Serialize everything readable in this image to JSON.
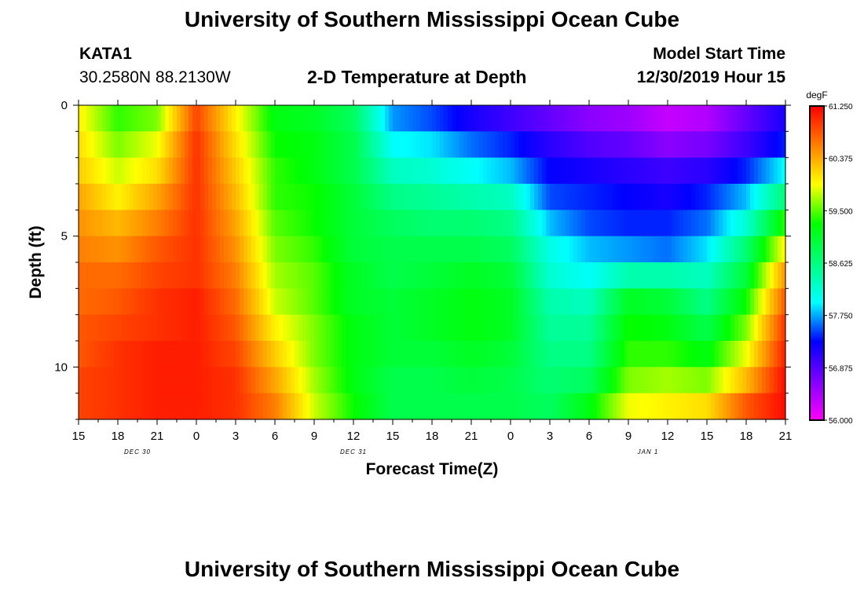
{
  "header": {
    "title_top": "University of Southern Mississippi Ocean Cube",
    "title_bottom": "University of Southern Mississippi Ocean Cube",
    "station_id": "KATA1",
    "station_coords": "30.2580N 88.2130W",
    "model_start_label": "Model Start Time",
    "model_start_value": "12/30/2019 Hour 15"
  },
  "colors": {
    "scale": [
      "#ff00ff",
      "#8000ff",
      "#0000ff",
      "#00ffff",
      "#00ff80",
      "#00ff00",
      "#ffff00",
      "#ff8000",
      "#ff0000"
    ]
  },
  "chart_data": {
    "type": "heatmap",
    "title": "2-D Temperature at Depth",
    "xlabel": "Forecast Time(Z)",
    "ylabel": "Depth (ft)",
    "x_ticks": [
      "15",
      "18",
      "21",
      "0",
      "3",
      "6",
      "9",
      "12",
      "15",
      "18",
      "21",
      "0",
      "3",
      "6",
      "9",
      "12",
      "15",
      "18",
      "21"
    ],
    "date_labels": [
      {
        "label": "DEC 30",
        "hour_offset": 4.5
      },
      {
        "label": "DEC 31",
        "hour_offset": 21
      },
      {
        "label": "JAN 1",
        "hour_offset": 43.5
      }
    ],
    "x_range_hours": [
      0,
      54
    ],
    "y_ticks": [
      "0",
      "5",
      "10"
    ],
    "y_range_ft": [
      0,
      12
    ],
    "colorbar": {
      "unit": "degF",
      "min": 56.0,
      "max": 61.25,
      "labels": [
        "61.250",
        "60.375",
        "59.500",
        "58.625",
        "57.750",
        "56.875",
        "56.000"
      ]
    },
    "depth_bands_ft": [
      0,
      1,
      2,
      3,
      4,
      5,
      6,
      7,
      8,
      9,
      10,
      11,
      12
    ],
    "time_columns_hours": [
      0,
      3,
      6,
      9,
      12,
      15,
      18,
      21,
      24,
      27,
      30,
      33,
      36,
      39,
      42,
      45,
      48,
      51,
      54
    ],
    "values_degF": [
      [
        60.0,
        59.4,
        59.6,
        60.9,
        60.0,
        59.2,
        59.1,
        58.8,
        57.7,
        57.5,
        57.2,
        57.0,
        56.8,
        56.6,
        56.5,
        56.3,
        56.4,
        56.8,
        57.2
      ],
      [
        60.1,
        59.6,
        59.9,
        61.0,
        60.1,
        59.3,
        59.2,
        58.9,
        58.0,
        57.9,
        57.6,
        57.4,
        57.1,
        56.9,
        56.8,
        56.6,
        56.7,
        57.0,
        57.4
      ],
      [
        60.2,
        59.8,
        60.1,
        61.0,
        60.2,
        59.4,
        59.2,
        58.9,
        58.3,
        58.2,
        58.0,
        57.8,
        57.3,
        57.2,
        57.1,
        57.0,
        57.1,
        57.4,
        58.0
      ],
      [
        60.4,
        60.0,
        60.4,
        61.0,
        60.3,
        59.4,
        59.3,
        59.0,
        58.6,
        58.5,
        58.4,
        58.3,
        57.5,
        57.4,
        57.3,
        57.2,
        57.4,
        57.8,
        58.7
      ],
      [
        60.5,
        60.3,
        60.6,
        61.0,
        60.4,
        59.5,
        59.3,
        59.0,
        58.8,
        58.7,
        58.7,
        58.6,
        57.8,
        57.5,
        57.4,
        57.4,
        57.6,
        58.2,
        59.4
      ],
      [
        60.6,
        60.5,
        60.8,
        61.0,
        60.5,
        59.6,
        59.4,
        59.0,
        58.9,
        58.9,
        58.9,
        58.8,
        58.1,
        57.8,
        57.7,
        57.6,
        57.9,
        58.7,
        60.0
      ],
      [
        60.7,
        60.7,
        60.9,
        61.0,
        60.6,
        59.7,
        59.5,
        59.1,
        58.9,
        59.0,
        59.1,
        59.0,
        58.2,
        58.0,
        58.4,
        58.4,
        58.3,
        59.0,
        60.5
      ],
      [
        60.7,
        60.8,
        61.0,
        61.1,
        60.7,
        59.8,
        59.5,
        59.1,
        59.0,
        59.1,
        59.2,
        59.1,
        58.4,
        58.3,
        59.1,
        59.0,
        58.6,
        59.3,
        60.8
      ],
      [
        60.8,
        60.9,
        61.0,
        61.1,
        60.8,
        60.0,
        59.6,
        59.2,
        59.0,
        59.1,
        59.2,
        59.1,
        58.5,
        58.5,
        59.3,
        59.2,
        58.9,
        59.6,
        61.0
      ],
      [
        60.8,
        61.0,
        61.1,
        61.1,
        60.9,
        60.2,
        59.6,
        59.2,
        59.0,
        59.0,
        59.1,
        59.0,
        58.6,
        58.6,
        59.4,
        59.4,
        59.2,
        59.9,
        61.1
      ],
      [
        60.9,
        61.0,
        61.1,
        61.1,
        61.0,
        60.4,
        59.7,
        59.2,
        58.9,
        58.9,
        59.0,
        58.9,
        58.7,
        58.8,
        59.6,
        59.7,
        59.6,
        60.3,
        61.2
      ],
      [
        60.9,
        61.0,
        61.1,
        61.1,
        61.0,
        60.6,
        59.8,
        59.3,
        58.9,
        58.9,
        58.9,
        58.9,
        58.8,
        59.2,
        59.9,
        60.0,
        60.1,
        60.8,
        61.2
      ]
    ]
  }
}
